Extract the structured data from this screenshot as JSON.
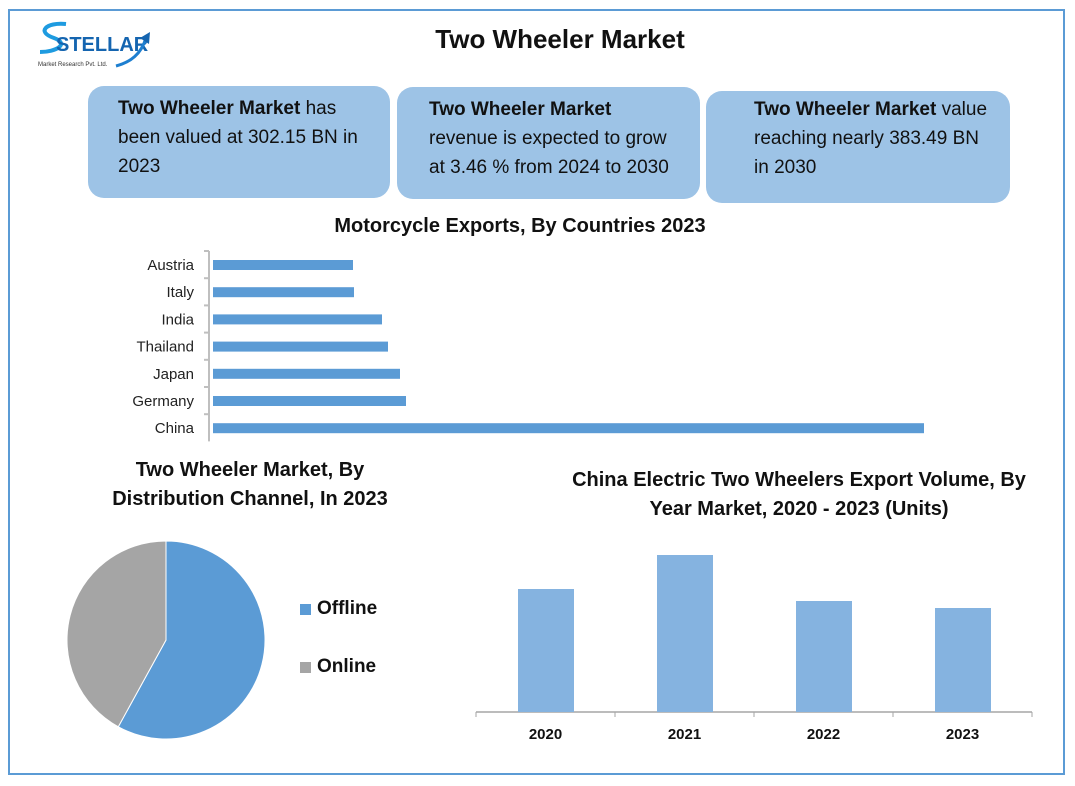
{
  "title": "Two Wheeler Market",
  "logo": {
    "name": "STELLAR",
    "subtitle": "Market Research Pvt. Ltd."
  },
  "cards": [
    {
      "bold": "Two Wheeler Market",
      "text": " has been valued at 302.15 BN in 2023"
    },
    {
      "bold": "Two Wheeler Market",
      "text": " revenue is expected to grow at 3.46 % from 2024 to 2030"
    },
    {
      "bold": "Two Wheeler Market",
      "text": " value reaching nearly 383.49 BN in 2030"
    }
  ],
  "colors": {
    "frame": "#5B9BD5",
    "card": "#9DC3E6",
    "bar": "#5B9BD5",
    "bar_light": "#85B3E0",
    "online": "#A5A5A5"
  },
  "chart_data": [
    {
      "type": "bar",
      "orientation": "horizontal",
      "title": "Motorcycle Exports, By Countries 2023",
      "categories": [
        "Austria",
        "Italy",
        "India",
        "Thailand",
        "Japan",
        "Germany",
        "China"
      ],
      "values": [
        140,
        141,
        169,
        175,
        187,
        193,
        711
      ],
      "note": "relative values, no value axis shown"
    },
    {
      "type": "pie",
      "title": "Two Wheeler Market, By Distribution Channel, In 2023",
      "labels": [
        "Offline",
        "Online"
      ],
      "values": [
        58,
        42
      ],
      "legend": "right"
    },
    {
      "type": "bar",
      "title": "China Electric Two Wheelers Export Volume, By Year Market, 2020 - 2023 (Units)",
      "categories": [
        "2020",
        "2021",
        "2022",
        "2023"
      ],
      "values": [
        123,
        157,
        111,
        104
      ],
      "note": "relative values, no value axis shown"
    }
  ]
}
